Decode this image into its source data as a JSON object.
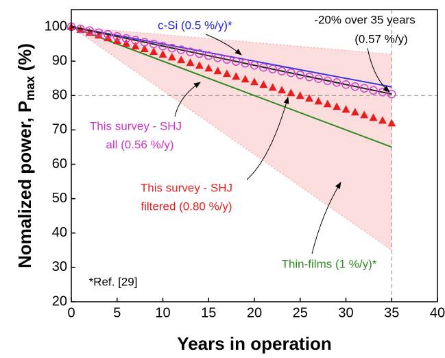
{
  "chart_data": {
    "type": "line",
    "xlabel": "Years in operation",
    "ylabel": {
      "text": "Nomalized power, P",
      "sub": "max",
      "suffix": " (%)"
    },
    "xlim": [
      0,
      40
    ],
    "xticks": [
      0,
      5,
      10,
      15,
      20,
      25,
      30,
      35,
      40
    ],
    "ylim": [
      20,
      105
    ],
    "yticks": [
      20,
      30,
      40,
      50,
      60,
      70,
      80,
      90,
      100
    ],
    "band": {
      "x": [
        0,
        35
      ],
      "upper": [
        100,
        92
      ],
      "lower": [
        100,
        35
      ],
      "color": "#fbdddd"
    },
    "hline": 80,
    "vline": 35,
    "series": [
      {
        "color": "#3a3ad8",
        "x": [
          0,
          35
        ],
        "values": [
          100,
          82.5
        ],
        "marker": "none"
      },
      {
        "color": "#2e8b22",
        "x": [
          0,
          35
        ],
        "values": [
          100,
          65
        ],
        "marker": "none"
      },
      {
        "color": "#e41f1f",
        "marker": "triangle",
        "x": [
          0,
          1,
          2,
          3,
          4,
          5,
          6,
          7,
          8,
          9,
          10,
          11,
          12,
          13,
          14,
          15,
          16,
          17,
          18,
          19,
          20,
          21,
          22,
          23,
          24,
          25,
          26,
          27,
          28,
          29,
          30,
          31,
          32,
          33,
          34,
          35
        ],
        "values": [
          100,
          99.2,
          98.4,
          97.6,
          96.8,
          96,
          95.2,
          94.4,
          93.6,
          92.8,
          92,
          91.2,
          90.4,
          89.6,
          88.8,
          88,
          87.2,
          86.4,
          85.6,
          84.8,
          84,
          83.2,
          82.4,
          81.6,
          80.8,
          80,
          79.2,
          78.4,
          77.6,
          76.8,
          76,
          75.2,
          74.4,
          73.6,
          72.8,
          72
        ]
      },
      {
        "color": "#222222",
        "x": [
          0,
          35
        ],
        "values": [
          100,
          80.4
        ],
        "marker": "none"
      },
      {
        "color": "#cc44cc",
        "marker": "circle",
        "x": [
          0,
          1,
          2,
          3,
          4,
          5,
          6,
          7,
          8,
          9,
          10,
          11,
          12,
          13,
          14,
          15,
          16,
          17,
          18,
          19,
          20,
          21,
          22,
          23,
          24,
          25,
          26,
          27,
          28,
          29,
          30,
          31,
          32,
          33,
          34,
          35
        ],
        "values": [
          100,
          99.4,
          98.9,
          98.3,
          97.8,
          97.2,
          96.6,
          96.1,
          95.5,
          95,
          94.4,
          93.8,
          93.3,
          92.7,
          92.2,
          91.6,
          91,
          90.5,
          89.9,
          89.4,
          88.8,
          88.2,
          87.7,
          87.1,
          86.6,
          86,
          85.4,
          84.9,
          84.3,
          83.8,
          83.2,
          82.6,
          82.1,
          81.5,
          81,
          80.4
        ]
      }
    ],
    "annotations": [
      {
        "text": "c-Si (0.5 %/y)*",
        "color": "#2222dd"
      },
      {
        "text": "-20% over 35 years",
        "color": "#000000"
      },
      {
        "text": "(0.57 %/y)",
        "color": "#000000"
      },
      {
        "text": "This survey - SHJ",
        "color": "#cc33cc"
      },
      {
        "text": "all (0.56 %/y)",
        "color": "#cc33cc"
      },
      {
        "text": "This survey - SHJ",
        "color": "#e41f1f"
      },
      {
        "text": "filtered (0.80 %/y)",
        "color": "#e41f1f"
      },
      {
        "text": "Thin-films (1 %/y)*",
        "color": "#2e8b22"
      },
      {
        "text": "*Ref. [29]",
        "color": "#000000"
      }
    ]
  }
}
